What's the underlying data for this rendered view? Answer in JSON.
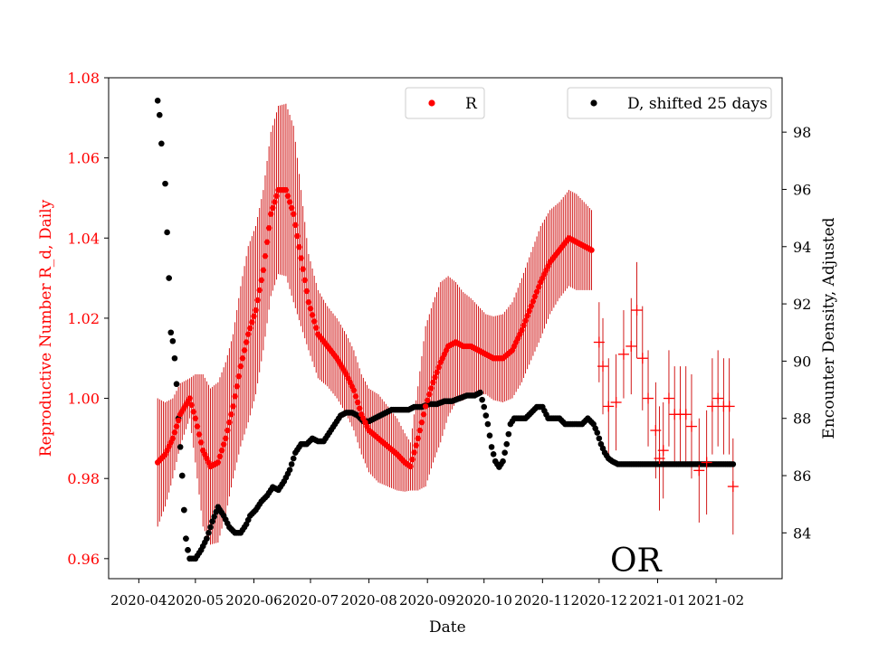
{
  "chart_data": {
    "type": "scatter",
    "title": "",
    "state_label": "OR",
    "xlabel": "Date",
    "ylabel_left": "Reproductive Number R_d, Daily",
    "ylabel_right": "Encounter Density, Adjusted",
    "x_ticks": [
      "2020-04",
      "2020-05",
      "2020-06",
      "2020-07",
      "2020-08",
      "2020-09",
      "2020-10",
      "2020-11",
      "2020-12",
      "2021-01",
      "2021-02"
    ],
    "y_left_ticks": [
      "0.96",
      "0.98",
      "1.00",
      "1.02",
      "1.04",
      "1.06",
      "1.08"
    ],
    "y_right_ticks": [
      "84",
      "86",
      "88",
      "90",
      "92",
      "94",
      "96",
      "98"
    ],
    "y_left_range": [
      0.955,
      1.08
    ],
    "y_right_range": [
      82.4,
      99.9
    ],
    "x_range_days": [
      -16,
      341
    ],
    "legend": {
      "r_label": "R",
      "d_label": "D, shifted 25 days"
    },
    "colors": {
      "r": "#ff0000",
      "r_err": "#cc0000",
      "d": "#000000",
      "left_axis": "#ff0000"
    },
    "series_R_day": [
      [
        10,
        0.984
      ],
      [
        14,
        0.986
      ],
      [
        18,
        0.99
      ],
      [
        22,
        0.996
      ],
      [
        27,
        1.0
      ],
      [
        30,
        0.995
      ],
      [
        34,
        0.987
      ],
      [
        38,
        0.983
      ],
      [
        42,
        0.984
      ],
      [
        46,
        0.99
      ],
      [
        50,
        0.998
      ],
      [
        54,
        1.008
      ],
      [
        58,
        1.016
      ],
      [
        62,
        1.022
      ],
      [
        66,
        1.032
      ],
      [
        70,
        1.046
      ],
      [
        74,
        1.052
      ],
      [
        78,
        1.052
      ],
      [
        82,
        1.046
      ],
      [
        86,
        1.035
      ],
      [
        90,
        1.024
      ],
      [
        95,
        1.016
      ],
      [
        100,
        1.013
      ],
      [
        105,
        1.01
      ],
      [
        110,
        1.006
      ],
      [
        114,
        1.002
      ],
      [
        118,
        0.996
      ],
      [
        122,
        0.992
      ],
      [
        127,
        0.99
      ],
      [
        132,
        0.988
      ],
      [
        137,
        0.986
      ],
      [
        141,
        0.984
      ],
      [
        144,
        0.983
      ],
      [
        148,
        0.99
      ],
      [
        152,
        0.998
      ],
      [
        156,
        1.004
      ],
      [
        160,
        1.009
      ],
      [
        164,
        1.013
      ],
      [
        168,
        1.014
      ],
      [
        172,
        1.013
      ],
      [
        176,
        1.013
      ],
      [
        180,
        1.012
      ],
      [
        184,
        1.011
      ],
      [
        188,
        1.01
      ],
      [
        193,
        1.01
      ],
      [
        198,
        1.012
      ],
      [
        203,
        1.017
      ],
      [
        208,
        1.023
      ],
      [
        213,
        1.029
      ],
      [
        218,
        1.034
      ],
      [
        223,
        1.037
      ],
      [
        228,
        1.04
      ],
      [
        232,
        1.039
      ],
      [
        236,
        1.038
      ],
      [
        240,
        1.037
      ]
    ],
    "series_R_err_day": [
      [
        10,
        0.016
      ],
      [
        18,
        0.01
      ],
      [
        27,
        0.005
      ],
      [
        34,
        0.019
      ],
      [
        42,
        0.02
      ],
      [
        50,
        0.018
      ],
      [
        58,
        0.022
      ],
      [
        66,
        0.02
      ],
      [
        74,
        0.021
      ],
      [
        82,
        0.022
      ],
      [
        90,
        0.012
      ],
      [
        100,
        0.01
      ],
      [
        110,
        0.01
      ],
      [
        118,
        0.01
      ],
      [
        127,
        0.011
      ],
      [
        137,
        0.009
      ],
      [
        144,
        0.006
      ],
      [
        152,
        0.02
      ],
      [
        160,
        0.02
      ],
      [
        168,
        0.015
      ],
      [
        176,
        0.012
      ],
      [
        184,
        0.01
      ],
      [
        193,
        0.011
      ],
      [
        203,
        0.013
      ],
      [
        213,
        0.014
      ],
      [
        223,
        0.012
      ],
      [
        232,
        0.012
      ],
      [
        240,
        0.01
      ]
    ],
    "series_R_sparse_day": [
      [
        244,
        1.014
      ],
      [
        246,
        1.008
      ],
      [
        249,
        0.998
      ],
      [
        253,
        0.999
      ],
      [
        257,
        1.011
      ],
      [
        261,
        1.013
      ],
      [
        264,
        1.022
      ],
      [
        267,
        1.01
      ],
      [
        270,
        1.0
      ],
      [
        274,
        0.992
      ],
      [
        276,
        0.985
      ],
      [
        278,
        0.987
      ],
      [
        281,
        1.0
      ],
      [
        284,
        0.996
      ],
      [
        287,
        0.996
      ],
      [
        290,
        0.996
      ],
      [
        293,
        0.993
      ],
      [
        297,
        0.982
      ],
      [
        301,
        0.984
      ],
      [
        304,
        0.998
      ],
      [
        307,
        1.0
      ],
      [
        310,
        0.998
      ],
      [
        313,
        0.998
      ],
      [
        315,
        0.978
      ]
    ],
    "series_R_sparse_err": [
      [
        244,
        0.01
      ],
      [
        246,
        0.012
      ],
      [
        249,
        0.012
      ],
      [
        253,
        0.012
      ],
      [
        257,
        0.011
      ],
      [
        261,
        0.012
      ],
      [
        264,
        0.012
      ],
      [
        267,
        0.013
      ],
      [
        270,
        0.012
      ],
      [
        274,
        0.012
      ],
      [
        276,
        0.013
      ],
      [
        278,
        0.012
      ],
      [
        281,
        0.012
      ],
      [
        284,
        0.012
      ],
      [
        287,
        0.012
      ],
      [
        290,
        0.012
      ],
      [
        293,
        0.013
      ],
      [
        297,
        0.013
      ],
      [
        301,
        0.013
      ],
      [
        304,
        0.012
      ],
      [
        307,
        0.012
      ],
      [
        310,
        0.012
      ],
      [
        313,
        0.012
      ],
      [
        315,
        0.012
      ]
    ],
    "series_D_day": [
      [
        10,
        99.1
      ],
      [
        11,
        98.6
      ],
      [
        12,
        97.6
      ],
      [
        14,
        96.2
      ],
      [
        15,
        94.5
      ],
      [
        16,
        92.9
      ],
      [
        17,
        91.0
      ],
      [
        18,
        90.7
      ],
      [
        19,
        90.1
      ],
      [
        20,
        89.2
      ],
      [
        21,
        88.0
      ],
      [
        22,
        87.0
      ],
      [
        23,
        86.0
      ],
      [
        24,
        84.8
      ],
      [
        25,
        83.8
      ],
      [
        26,
        83.4
      ],
      [
        27,
        83.1
      ],
      [
        30,
        83.1
      ],
      [
        33,
        83.4
      ],
      [
        36,
        83.8
      ],
      [
        39,
        84.4
      ],
      [
        42,
        84.9
      ],
      [
        45,
        84.6
      ],
      [
        48,
        84.2
      ],
      [
        51,
        84.0
      ],
      [
        54,
        84.0
      ],
      [
        57,
        84.3
      ],
      [
        59,
        84.6
      ],
      [
        62,
        84.8
      ],
      [
        65,
        85.1
      ],
      [
        68,
        85.3
      ],
      [
        71,
        85.6
      ],
      [
        74,
        85.5
      ],
      [
        77,
        85.8
      ],
      [
        80,
        86.2
      ],
      [
        83,
        86.8
      ],
      [
        86,
        87.1
      ],
      [
        89,
        87.1
      ],
      [
        92,
        87.3
      ],
      [
        95,
        87.2
      ],
      [
        98,
        87.2
      ],
      [
        101,
        87.5
      ],
      [
        104,
        87.8
      ],
      [
        107,
        88.1
      ],
      [
        110,
        88.2
      ],
      [
        113,
        88.2
      ],
      [
        116,
        88.1
      ],
      [
        119,
        87.9
      ],
      [
        122,
        87.9
      ],
      [
        125,
        88.0
      ],
      [
        128,
        88.1
      ],
      [
        131,
        88.2
      ],
      [
        134,
        88.3
      ],
      [
        137,
        88.3
      ],
      [
        140,
        88.3
      ],
      [
        143,
        88.3
      ],
      [
        146,
        88.4
      ],
      [
        150,
        88.4
      ],
      [
        154,
        88.5
      ],
      [
        158,
        88.5
      ],
      [
        162,
        88.6
      ],
      [
        166,
        88.6
      ],
      [
        170,
        88.7
      ],
      [
        174,
        88.8
      ],
      [
        178,
        88.8
      ],
      [
        181,
        88.9
      ],
      [
        183,
        88.4
      ],
      [
        185,
        87.8
      ],
      [
        187,
        87.0
      ],
      [
        189,
        86.5
      ],
      [
        191,
        86.3
      ],
      [
        193,
        86.5
      ],
      [
        195,
        87.1
      ],
      [
        197,
        87.8
      ],
      [
        199,
        88.0
      ],
      [
        202,
        88.0
      ],
      [
        205,
        88.0
      ],
      [
        208,
        88.2
      ],
      [
        211,
        88.4
      ],
      [
        214,
        88.4
      ],
      [
        217,
        88.0
      ],
      [
        220,
        88.0
      ],
      [
        223,
        88.0
      ],
      [
        226,
        87.8
      ],
      [
        229,
        87.8
      ],
      [
        232,
        87.8
      ],
      [
        235,
        87.8
      ],
      [
        238,
        88.0
      ],
      [
        241,
        87.8
      ],
      [
        243,
        87.5
      ],
      [
        245,
        87.1
      ],
      [
        247,
        86.8
      ],
      [
        249,
        86.6
      ],
      [
        251,
        86.5
      ],
      [
        254,
        86.4
      ],
      [
        258,
        86.4
      ],
      [
        262,
        86.4
      ],
      [
        266,
        86.4
      ],
      [
        270,
        86.4
      ],
      [
        275,
        86.4
      ],
      [
        280,
        86.4
      ],
      [
        285,
        86.4
      ],
      [
        290,
        86.4
      ],
      [
        295,
        86.4
      ],
      [
        300,
        86.4
      ],
      [
        305,
        86.4
      ],
      [
        310,
        86.4
      ],
      [
        315,
        86.4
      ]
    ]
  }
}
